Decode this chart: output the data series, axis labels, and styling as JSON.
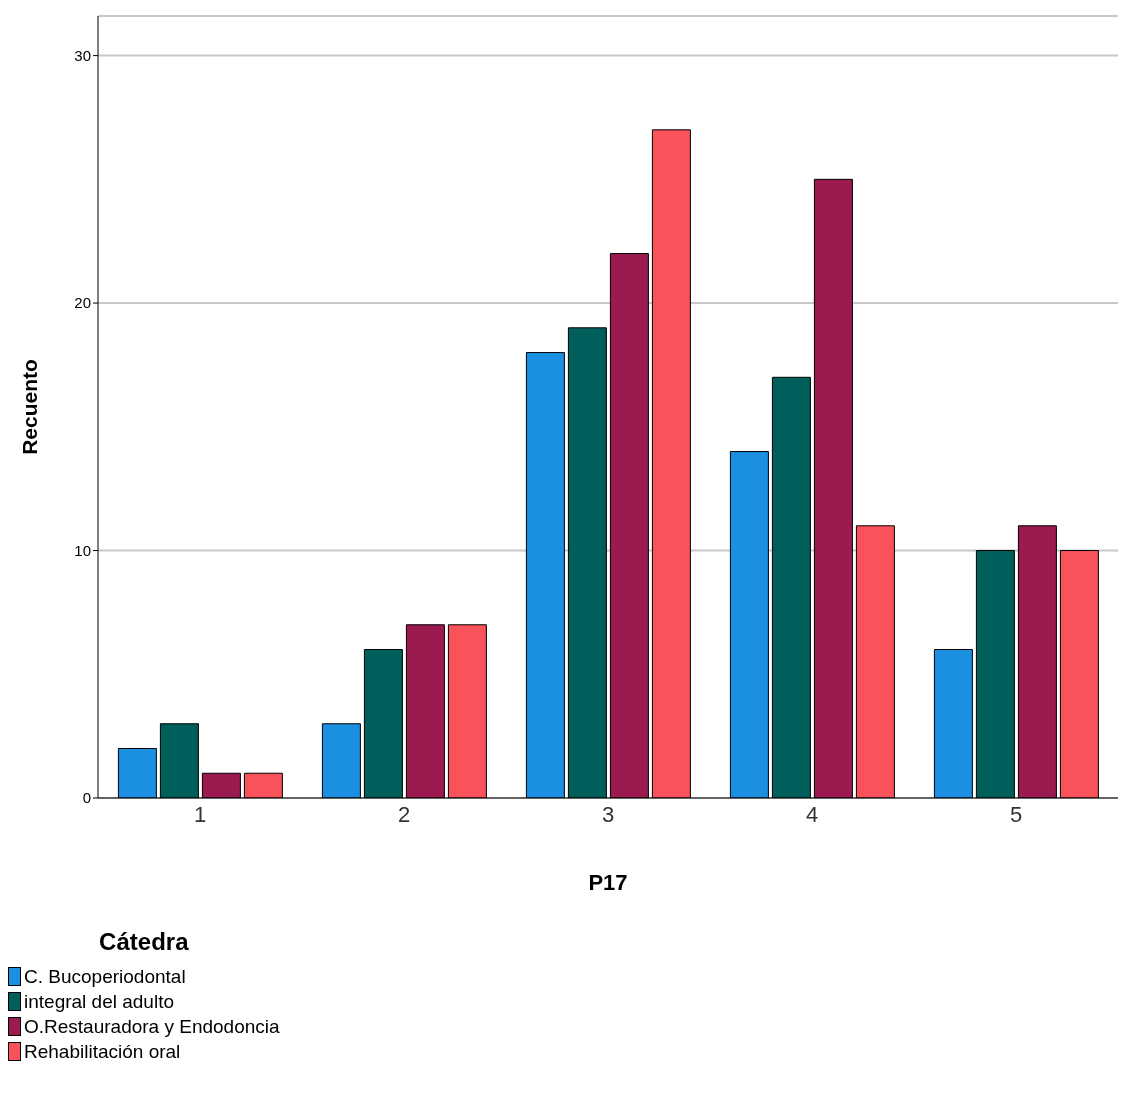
{
  "chart_data": {
    "type": "bar",
    "xlabel": "P17",
    "ylabel": "Recuento",
    "legend_title": "Cátedra",
    "categories": [
      "1",
      "2",
      "3",
      "4",
      "5"
    ],
    "series": [
      {
        "name": "C. Bucoperiodontal",
        "color": "#1b8fe0",
        "values": [
          2,
          3,
          18,
          14,
          6
        ]
      },
      {
        "name": "integral del adulto",
        "color": "#005f5a",
        "values": [
          3,
          6,
          19,
          17,
          10
        ]
      },
      {
        "name": "O.Restauradora y Endodoncia",
        "color": "#9b1a4f",
        "values": [
          1,
          7,
          22,
          25,
          11
        ]
      },
      {
        "name": "Rehabilitación oral",
        "color": "#f9525a",
        "values": [
          1,
          7,
          27,
          11,
          10
        ]
      }
    ],
    "ylim": [
      0,
      31.6
    ],
    "yticks": [
      0,
      10,
      20,
      30
    ],
    "grid": "y",
    "legend": "bottom left"
  }
}
